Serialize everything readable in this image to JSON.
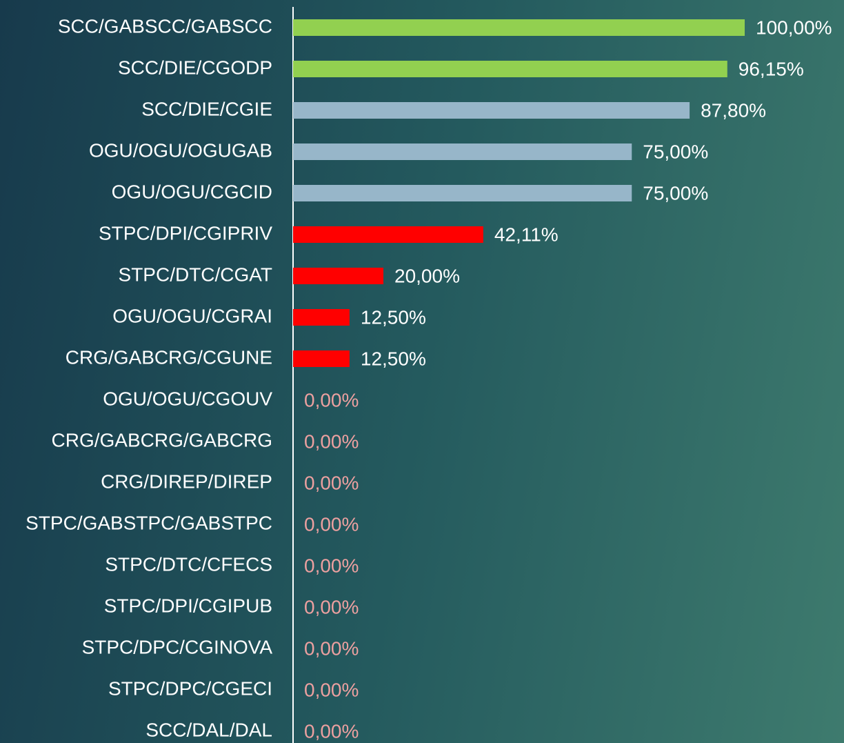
{
  "chart_data": {
    "type": "hbar",
    "categories": [
      "SCC/GABSCC/GABSCC",
      "SCC/DIE/CGODP",
      "SCC/DIE/CGIE",
      "OGU/OGU/OGUGAB",
      "OGU/OGU/CGCID",
      "STPC/DPI/CGIPRIV",
      "STPC/DTC/CGAT",
      "OGU/OGU/CGRAI",
      "CRG/GABCRG/CGUNE",
      "OGU/OGU/CGOUV",
      "CRG/GABCRG/GABCRG",
      "CRG/DIREP/DIREP",
      "STPC/GABSTPC/GABSTPC",
      "STPC/DTC/CFECS",
      "STPC/DPI/CGIPUB",
      "STPC/DPC/CGINOVA",
      "STPC/DPC/CGECI",
      "SCC/DAL/DAL"
    ],
    "values": [
      100,
      96.15,
      87.8,
      75,
      75,
      42.11,
      20,
      12.5,
      12.5,
      0,
      0,
      0,
      0,
      0,
      0,
      0,
      0,
      0
    ],
    "value_labels": [
      "100,00%",
      "96,15%",
      "87,80%",
      "75,00%",
      "75,00%",
      "42,11%",
      "20,00%",
      "12,50%",
      "12,50%",
      "0,00%",
      "0,00%",
      "0,00%",
      "0,00%",
      "0,00%",
      "0,00%",
      "0,00%",
      "0,00%",
      "0,00%"
    ],
    "colors": [
      "#92d050",
      "#92d050",
      "#97b6c9",
      "#97b6c9",
      "#97b6c9",
      "#ff0000",
      "#ff0000",
      "#ff0000",
      "#ff0000",
      "#ff0000",
      "#ff0000",
      "#ff0000",
      "#ff0000",
      "#ff0000",
      "#ff0000",
      "#ff0000",
      "#ff0000",
      "#ff0000"
    ],
    "label_color": "#ffffff",
    "zero_label_color": "#eda0a0",
    "xlim": [
      0,
      100
    ]
  }
}
